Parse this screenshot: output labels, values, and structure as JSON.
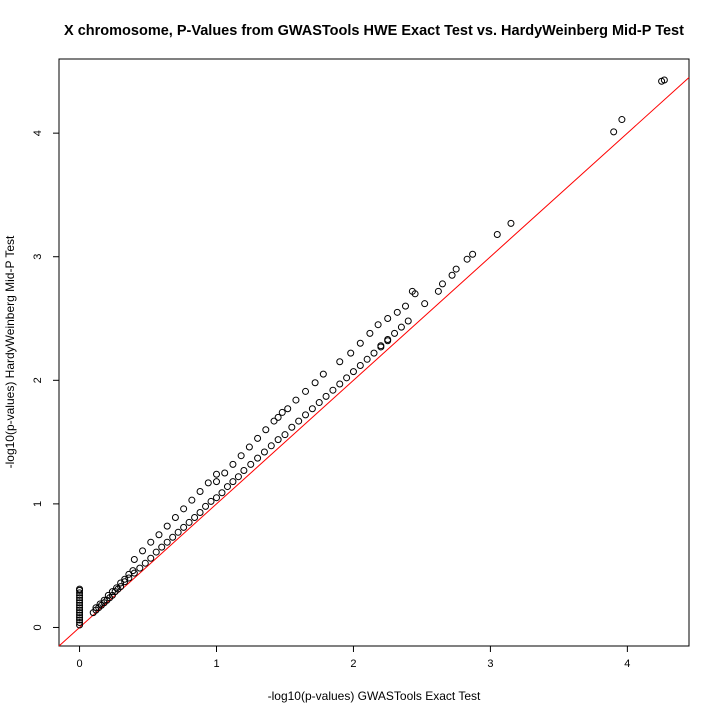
{
  "chart_data": {
    "type": "scatter",
    "title": "X chromosome, P-Values from GWASTools HWE Exact Test vs. HardyWeinberg Mid-P Test",
    "xlabel": "-log10(p-values) GWASTools Exact Test",
    "ylabel": "-log10(p-values) HardyWeinberg Mid-P Test",
    "xlim": [
      -0.15,
      4.45
    ],
    "ylim": [
      -0.15,
      4.6
    ],
    "xticks": [
      0,
      1,
      2,
      3,
      4
    ],
    "yticks": [
      0,
      1,
      2,
      3,
      4
    ],
    "grid": false,
    "reference_line": {
      "slope": 1,
      "intercept": 0,
      "color": "#ff0000"
    },
    "marker_color": "#000000",
    "series": [
      {
        "x": [
          0,
          0,
          0,
          0,
          0,
          0,
          0,
          0,
          0,
          0,
          0,
          0,
          0,
          0,
          0,
          0,
          0.1,
          0.12,
          0.14,
          0.16,
          0.18,
          0.2,
          0.22,
          0.24,
          0.26,
          0.28,
          0.3,
          0.12,
          0.15,
          0.18,
          0.21,
          0.24,
          0.27,
          0.3,
          0.33,
          0.36,
          0.39,
          0.33,
          0.36,
          0.4,
          0.44,
          0.48,
          0.52,
          0.56,
          0.6,
          0.64,
          0.68,
          0.72,
          0.76,
          0.8,
          0.84,
          0.88,
          0.92,
          0.96,
          0.4,
          0.46,
          0.52,
          0.58,
          0.64,
          0.7,
          0.76,
          0.82,
          0.88,
          0.94,
          1.0,
          1.0,
          1.04,
          1.08,
          1.12,
          1.16,
          1.2,
          1.25,
          1.3,
          1.35,
          1.4,
          1.45,
          1.0,
          1.06,
          1.12,
          1.18,
          1.24,
          1.3,
          1.36,
          1.42,
          1.48,
          1.5,
          1.55,
          1.6,
          1.65,
          1.7,
          1.75,
          1.8,
          1.45,
          1.52,
          1.58,
          1.65,
          1.72,
          1.78,
          1.85,
          1.9,
          1.95,
          2.0,
          2.05,
          2.1,
          2.15,
          2.2,
          2.25,
          1.9,
          1.98,
          2.05,
          2.12,
          2.18,
          2.2,
          2.25,
          2.3,
          2.35,
          2.4,
          2.25,
          2.32,
          2.38,
          2.43,
          2.45,
          2.52,
          2.62,
          2.65,
          2.72,
          2.75,
          2.83,
          2.87,
          3.05,
          3.15,
          3.9,
          3.96,
          4.25,
          4.27
        ],
        "y": [
          0.02,
          0.04,
          0.06,
          0.08,
          0.1,
          0.12,
          0.14,
          0.16,
          0.18,
          0.2,
          0.22,
          0.24,
          0.26,
          0.28,
          0.3,
          0.31,
          0.12,
          0.14,
          0.16,
          0.18,
          0.2,
          0.22,
          0.24,
          0.26,
          0.29,
          0.31,
          0.33,
          0.16,
          0.19,
          0.22,
          0.26,
          0.29,
          0.32,
          0.36,
          0.39,
          0.43,
          0.46,
          0.37,
          0.4,
          0.44,
          0.48,
          0.52,
          0.56,
          0.61,
          0.65,
          0.69,
          0.73,
          0.77,
          0.81,
          0.85,
          0.89,
          0.93,
          0.98,
          1.02,
          0.55,
          0.62,
          0.69,
          0.75,
          0.82,
          0.89,
          0.96,
          1.03,
          1.1,
          1.17,
          1.24,
          1.05,
          1.09,
          1.14,
          1.18,
          1.22,
          1.27,
          1.32,
          1.37,
          1.42,
          1.47,
          1.52,
          1.18,
          1.25,
          1.32,
          1.39,
          1.46,
          1.53,
          1.6,
          1.67,
          1.74,
          1.56,
          1.62,
          1.67,
          1.72,
          1.77,
          1.82,
          1.87,
          1.7,
          1.77,
          1.84,
          1.91,
          1.98,
          2.05,
          1.92,
          1.97,
          2.02,
          2.07,
          2.12,
          2.17,
          2.22,
          2.27,
          2.32,
          2.15,
          2.22,
          2.3,
          2.38,
          2.45,
          2.28,
          2.33,
          2.38,
          2.43,
          2.48,
          2.5,
          2.55,
          2.6,
          2.72,
          2.7,
          2.62,
          2.72,
          2.78,
          2.85,
          2.9,
          2.98,
          3.02,
          3.18,
          3.27,
          4.01,
          4.11,
          4.42,
          4.43
        ]
      }
    ]
  }
}
